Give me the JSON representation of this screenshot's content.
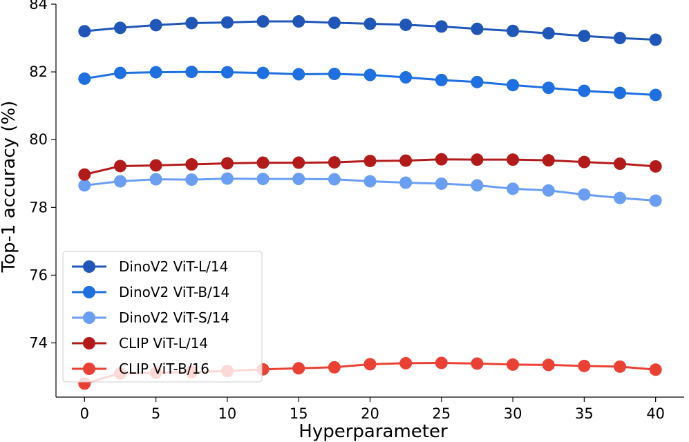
{
  "chart_data": {
    "type": "line",
    "title": "",
    "xlabel": "Hyperparameter",
    "ylabel": "Top-1 accuracy (%)",
    "xlim": [
      -2,
      42
    ],
    "ylim": [
      72.4,
      84.0
    ],
    "x_ticks": [
      0,
      5,
      10,
      15,
      20,
      25,
      30,
      35,
      40
    ],
    "y_ticks": [
      74,
      76,
      78,
      80,
      82,
      84
    ],
    "grid": false,
    "legend_position": "lower-left",
    "x": [
      0,
      2.5,
      5,
      7.5,
      10,
      12.5,
      15,
      17.5,
      20,
      22.5,
      25,
      27.5,
      30,
      32.5,
      35,
      37.5,
      40
    ],
    "series": [
      {
        "name": "DinoV2 ViT-L/14",
        "color": "#1f56b8",
        "values": [
          83.2,
          83.3,
          83.38,
          83.44,
          83.46,
          83.49,
          83.49,
          83.45,
          83.42,
          83.39,
          83.34,
          83.27,
          83.21,
          83.14,
          83.06,
          83.0,
          82.95
        ]
      },
      {
        "name": "DinoV2 ViT-B/14",
        "color": "#1e6fe0",
        "values": [
          81.8,
          81.97,
          81.99,
          82.0,
          81.99,
          81.97,
          81.93,
          81.94,
          81.91,
          81.84,
          81.76,
          81.7,
          81.61,
          81.53,
          81.44,
          81.38,
          81.32
        ]
      },
      {
        "name": "DinoV2 ViT-S/14",
        "color": "#6a9ef2",
        "values": [
          78.65,
          78.77,
          78.83,
          78.82,
          78.85,
          78.84,
          78.84,
          78.83,
          78.77,
          78.73,
          78.7,
          78.65,
          78.55,
          78.5,
          78.38,
          78.28,
          78.2
        ]
      },
      {
        "name": "CLIP ViT-L/14",
        "color": "#b31b1b",
        "values": [
          78.97,
          79.22,
          79.24,
          79.27,
          79.3,
          79.32,
          79.32,
          79.33,
          79.37,
          79.38,
          79.42,
          79.41,
          79.41,
          79.39,
          79.34,
          79.29,
          79.21
        ]
      },
      {
        "name": "CLIP ViT-B/16",
        "color": "#eb4034",
        "values": [
          72.8,
          73.1,
          73.12,
          73.14,
          73.17,
          73.22,
          73.25,
          73.28,
          73.37,
          73.4,
          73.41,
          73.39,
          73.36,
          73.35,
          73.32,
          73.3,
          73.21
        ]
      }
    ]
  }
}
